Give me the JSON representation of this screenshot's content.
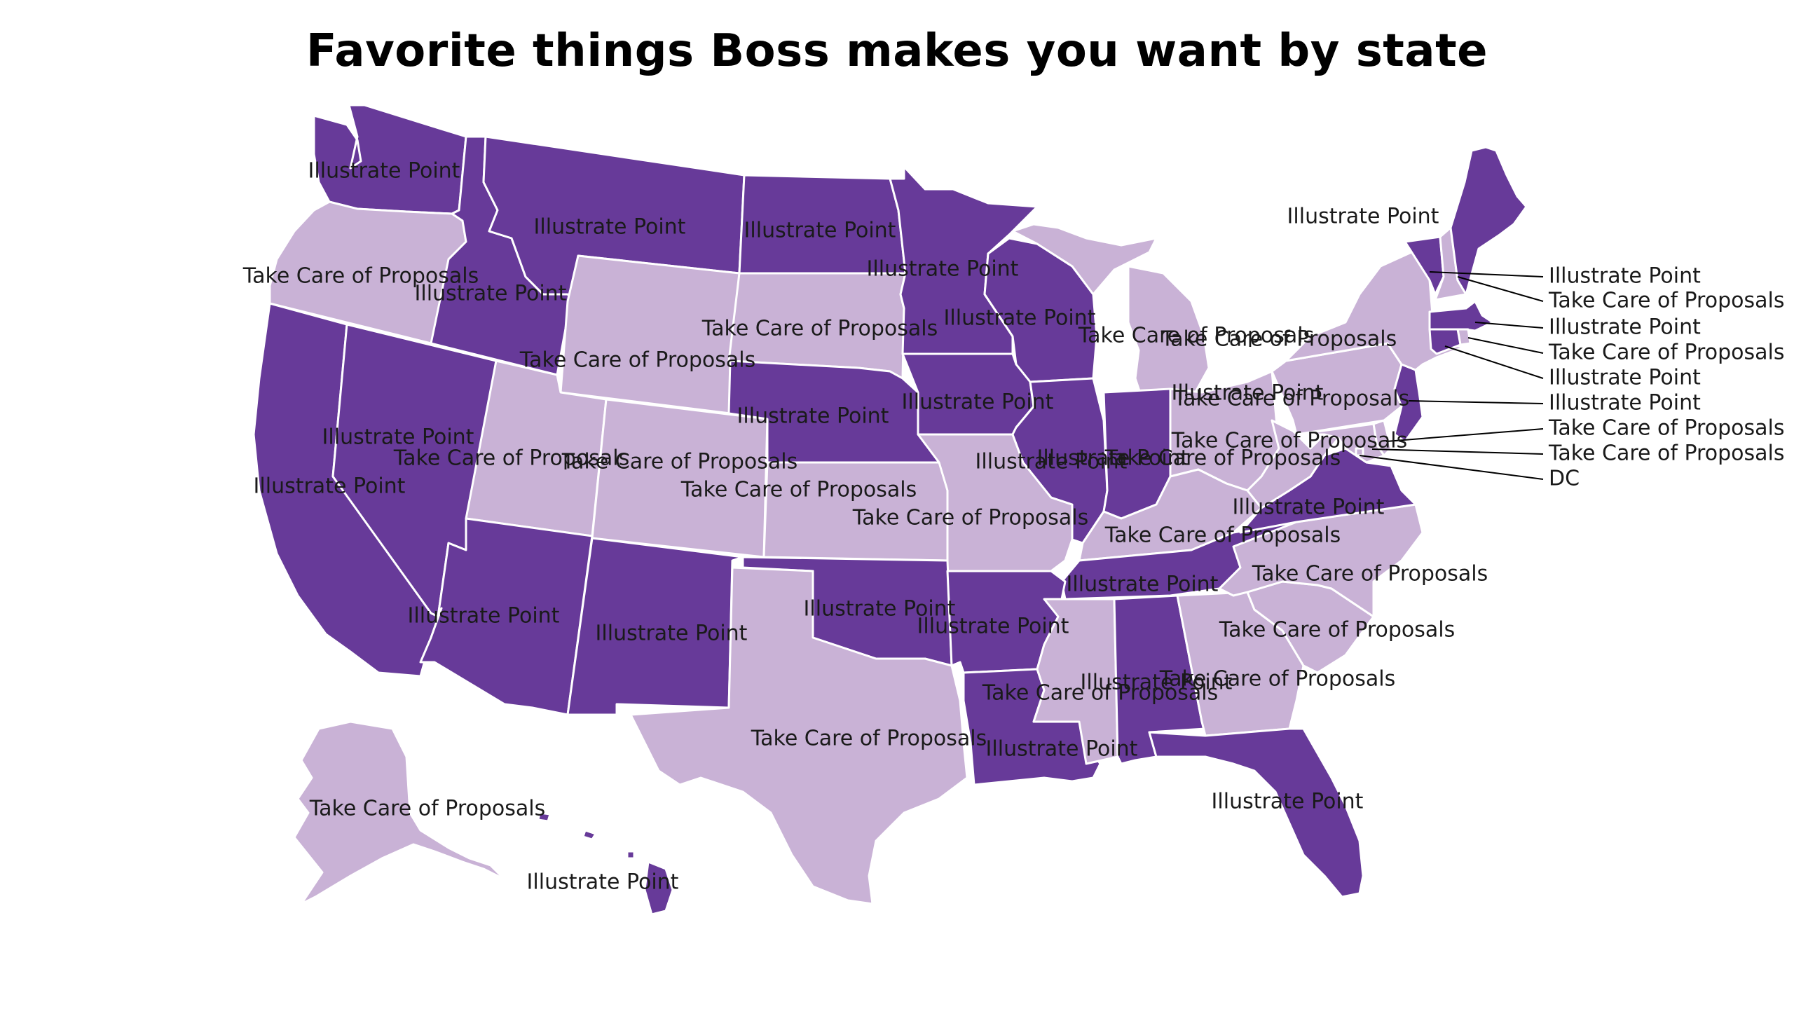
{
  "title": "Favorite things Boss makes you want by state",
  "legend_categories": [
    "Illustrate Point",
    "Take Care of Proposals"
  ],
  "colors": {
    "Illustrate Point": "#673a99",
    "Take Care of Proposals": "#c9b2d6",
    "border": "#ffffff",
    "text": "#1a1a1a"
  },
  "states": {
    "WA": "Illustrate Point",
    "OR": "Take Care of Proposals",
    "ID": "Illustrate Point",
    "MT": "Illustrate Point",
    "WY": "Take Care of Proposals",
    "ND": "Illustrate Point",
    "SD": "Take Care of Proposals",
    "MN": "Illustrate Point",
    "WI": "Illustrate Point",
    "MI": "Take Care of Proposals",
    "CA": "Illustrate Point",
    "NV": "Illustrate Point",
    "UT": "Take Care of Proposals",
    "CO": "Take Care of Proposals",
    "NE": "Illustrate Point",
    "KS": "Take Care of Proposals",
    "IA": "Illustrate Point",
    "IL": "Illustrate Point",
    "IN": "Illustrate Point",
    "OH": "Take Care of Proposals",
    "KY": "Take Care of Proposals",
    "MO": "Take Care of Proposals",
    "AZ": "Illustrate Point",
    "NM": "Illustrate Point",
    "OK": "Illustrate Point",
    "TX": "Take Care of Proposals",
    "AR": "Illustrate Point",
    "LA": "Illustrate Point",
    "MS": "Take Care of Proposals",
    "AL": "Illustrate Point",
    "TN": "Illustrate Point",
    "GA": "Take Care of Proposals",
    "FL": "Illustrate Point",
    "SC": "Take Care of Proposals",
    "NC": "Take Care of Proposals",
    "VA": "Illustrate Point",
    "WV": "Take Care of Proposals",
    "PA": "Take Care of Proposals",
    "NY": "Take Care of Proposals",
    "ME": "Illustrate Point",
    "VT": "Illustrate Point",
    "NH": "Take Care of Proposals",
    "MA": "Illustrate Point",
    "RI": "Take Care of Proposals",
    "CT": "Illustrate Point",
    "NJ": "Illustrate Point",
    "DE": "Take Care of Proposals",
    "MD": "Take Care of Proposals",
    "DC": "Take Care of Proposals",
    "AK": "Take Care of Proposals",
    "HI": "Illustrate Point"
  },
  "callout_labels": {
    "VT": "Illustrate Point",
    "NH": "Take Care of Proposals",
    "MA": "Illustrate Point",
    "RI": "Take Care of Proposals",
    "CT": "Illustrate Point",
    "NJ": "Illustrate Point",
    "DE": "Take Care of Proposals",
    "MD": "Take Care of Proposals",
    "DC": "DC"
  }
}
